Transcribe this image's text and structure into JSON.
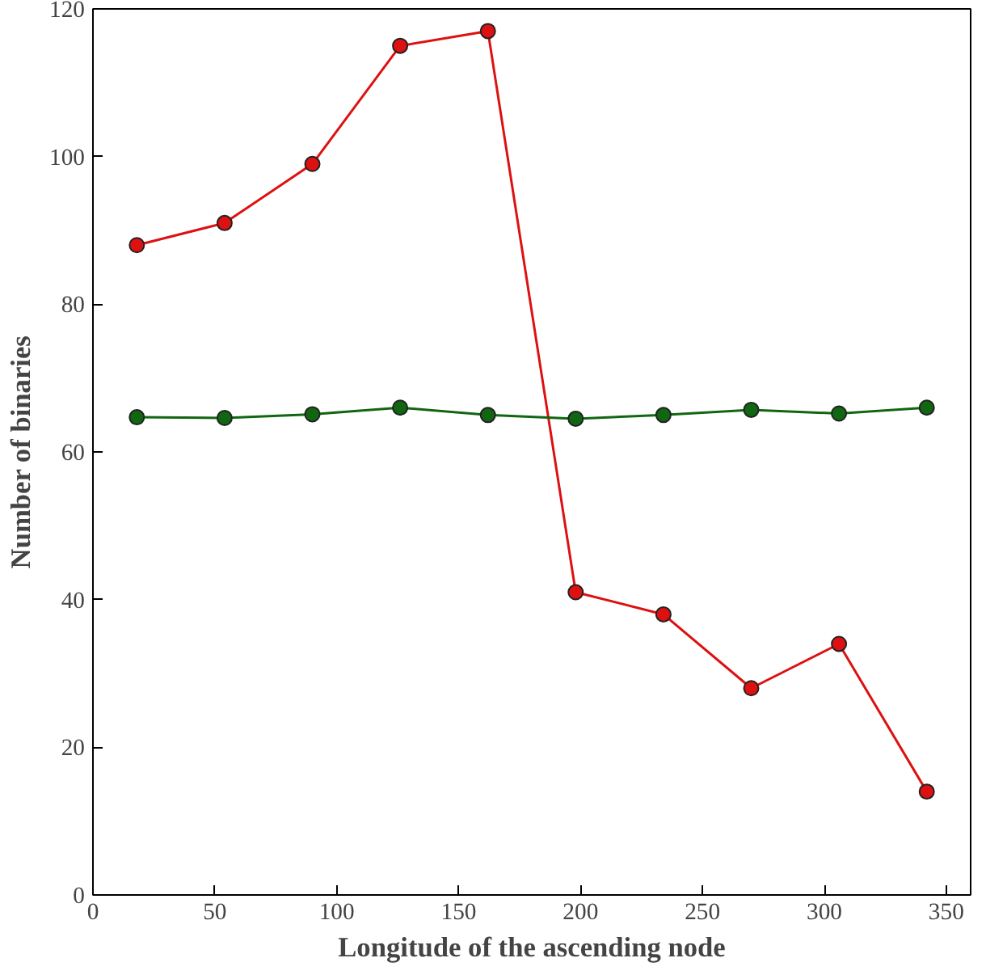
{
  "chart_data": {
    "type": "line",
    "xlabel": "Longitude of the ascending node",
    "ylabel": "Number of binaries",
    "x": [
      18,
      54,
      90,
      126,
      162,
      198,
      234,
      270,
      306,
      342
    ],
    "series": [
      {
        "color": "#dd1111",
        "values": [
          88,
          91,
          99,
          115,
          117,
          41,
          38,
          28,
          34,
          14
        ]
      },
      {
        "color": "#116611",
        "values": [
          64.7,
          64.6,
          65.1,
          66,
          65,
          64.5,
          65,
          65.7,
          65.2,
          66
        ]
      }
    ],
    "xlim": [
      0,
      360
    ],
    "xticks": [
      0,
      50,
      100,
      150,
      200,
      250,
      300,
      350
    ],
    "ylim": [
      0,
      120
    ],
    "yticks": [
      0,
      20,
      40,
      60,
      80,
      100,
      120
    ],
    "grid": false,
    "marker": "circle",
    "line_style": "solid"
  }
}
